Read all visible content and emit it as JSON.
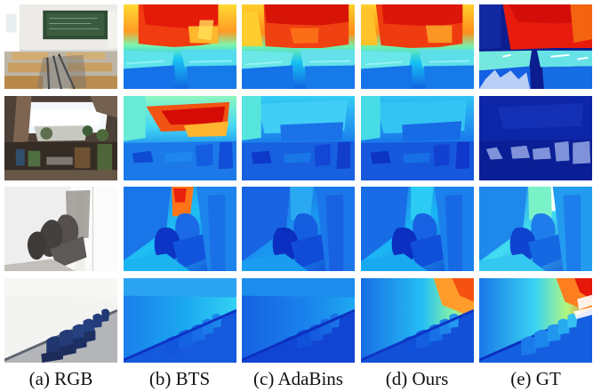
{
  "figure": {
    "captions": [
      "(a) RGB",
      "(b) BTS",
      "(c) AdaBins",
      "(d) Ours",
      "(e) GT"
    ]
  }
}
